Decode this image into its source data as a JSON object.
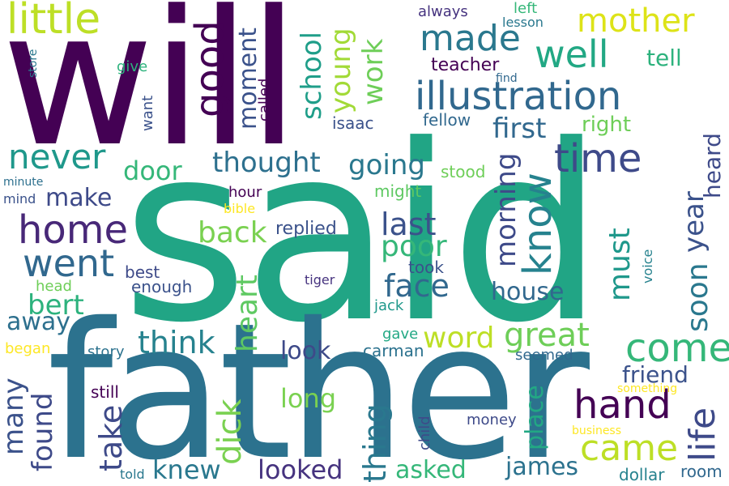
{
  "palette": {
    "purple": "#440154",
    "indigo": "#3b528b",
    "blue": "#31688e",
    "teal": "#21918c",
    "green": "#35b779",
    "lime": "#90d743",
    "yellow": "#fde725"
  },
  "words": [
    {
      "text": "will",
      "color": "#440154"
    },
    {
      "text": "said",
      "color": "#21a585"
    },
    {
      "text": "father",
      "color": "#2c728e"
    },
    {
      "text": "little",
      "color": "#bddf26"
    },
    {
      "text": "mother",
      "color": "#dde318"
    },
    {
      "text": "made",
      "color": "#2a788e"
    },
    {
      "text": "well",
      "color": "#22a884"
    },
    {
      "text": "illustration",
      "color": "#31688e"
    },
    {
      "text": "tell",
      "color": "#2db27d"
    },
    {
      "text": "good",
      "color": "#440154"
    },
    {
      "text": "moment",
      "color": "#3b528b"
    },
    {
      "text": "school",
      "color": "#1f9e89"
    },
    {
      "text": "young",
      "color": "#a2da37"
    },
    {
      "text": "work",
      "color": "#6ece58"
    },
    {
      "text": "never",
      "color": "#1f988b"
    },
    {
      "text": "time",
      "color": "#3e4a89"
    },
    {
      "text": "first",
      "color": "#31688e"
    },
    {
      "text": "right",
      "color": "#6ece58"
    },
    {
      "text": "thought",
      "color": "#2d708e"
    },
    {
      "text": "going",
      "color": "#2a788e"
    },
    {
      "text": "door",
      "color": "#35b779"
    },
    {
      "text": "know",
      "color": "#26828e"
    },
    {
      "text": "home",
      "color": "#482878"
    },
    {
      "text": "make",
      "color": "#3e4a89"
    },
    {
      "text": "went",
      "color": "#31688e"
    },
    {
      "text": "bert",
      "color": "#2db27d"
    },
    {
      "text": "back",
      "color": "#7ad151"
    },
    {
      "text": "last",
      "color": "#3b528b"
    },
    {
      "text": "poor",
      "color": "#35b779"
    },
    {
      "text": "face",
      "color": "#31688e"
    },
    {
      "text": "morning",
      "color": "#3e4a89"
    },
    {
      "text": "must",
      "color": "#1f988b"
    },
    {
      "text": "soon",
      "color": "#2a788e"
    },
    {
      "text": "year",
      "color": "#3b528b"
    },
    {
      "text": "heard",
      "color": "#3e4a89"
    },
    {
      "text": "heart",
      "color": "#5ec962"
    },
    {
      "text": "away",
      "color": "#2d708e"
    },
    {
      "text": "think",
      "color": "#26828e"
    },
    {
      "text": "word",
      "color": "#bddf26"
    },
    {
      "text": "great",
      "color": "#6ece58"
    },
    {
      "text": "come",
      "color": "#35b779"
    },
    {
      "text": "house",
      "color": "#31688e"
    },
    {
      "text": "hand",
      "color": "#440154"
    },
    {
      "text": "came",
      "color": "#bddf26"
    },
    {
      "text": "life",
      "color": "#3e4a89"
    },
    {
      "text": "friend",
      "color": "#3b528b"
    },
    {
      "text": "look",
      "color": "#3e4a89"
    },
    {
      "text": "long",
      "color": "#7ad151"
    },
    {
      "text": "thing",
      "color": "#2a788e"
    },
    {
      "text": "dick",
      "color": "#7ad151"
    },
    {
      "text": "take",
      "color": "#3e4a89"
    },
    {
      "text": "found",
      "color": "#3e4a89"
    },
    {
      "text": "many",
      "color": "#3b528b"
    },
    {
      "text": "knew",
      "color": "#2a788e"
    },
    {
      "text": "looked",
      "color": "#46337f"
    },
    {
      "text": "asked",
      "color": "#35b779"
    },
    {
      "text": "james",
      "color": "#2c728e"
    },
    {
      "text": "place",
      "color": "#22a884"
    },
    {
      "text": "room",
      "color": "#31688e"
    },
    {
      "text": "dollar",
      "color": "#26828e"
    },
    {
      "text": "something",
      "color": "#fde725"
    },
    {
      "text": "business",
      "color": "#fde725"
    },
    {
      "text": "money",
      "color": "#3e4a89"
    },
    {
      "text": "child",
      "color": "#3e4a89"
    },
    {
      "text": "seemed",
      "color": "#31688e"
    },
    {
      "text": "carman",
      "color": "#2c728e"
    },
    {
      "text": "gave",
      "color": "#22a884"
    },
    {
      "text": "jack",
      "color": "#1f988b"
    },
    {
      "text": "voice",
      "color": "#26828e"
    },
    {
      "text": "tiger",
      "color": "#46337f"
    },
    {
      "text": "took",
      "color": "#3b528b"
    },
    {
      "text": "replied",
      "color": "#3b528b"
    },
    {
      "text": "enough",
      "color": "#3b528b"
    },
    {
      "text": "best",
      "color": "#3e4a89"
    },
    {
      "text": "hour",
      "color": "#440154"
    },
    {
      "text": "bible",
      "color": "#fde725"
    },
    {
      "text": "might",
      "color": "#5ec962"
    },
    {
      "text": "stood",
      "color": "#6ece58"
    },
    {
      "text": "fellow",
      "color": "#31688e"
    },
    {
      "text": "isaac",
      "color": "#3b528b"
    },
    {
      "text": "find",
      "color": "#31688e"
    },
    {
      "text": "teacher",
      "color": "#440154"
    },
    {
      "text": "always",
      "color": "#46337f"
    },
    {
      "text": "left",
      "color": "#35b779"
    },
    {
      "text": "lesson",
      "color": "#2a788e"
    },
    {
      "text": "called",
      "color": "#440154"
    },
    {
      "text": "want",
      "color": "#3b528b"
    },
    {
      "text": "give",
      "color": "#2db27d"
    },
    {
      "text": "store",
      "color": "#2a788e"
    },
    {
      "text": "minute",
      "color": "#2d708e"
    },
    {
      "text": "mind",
      "color": "#3b528b"
    },
    {
      "text": "head",
      "color": "#6ece58"
    },
    {
      "text": "began",
      "color": "#fde725"
    },
    {
      "text": "story",
      "color": "#2c728e"
    },
    {
      "text": "still",
      "color": "#440154"
    },
    {
      "text": "told",
      "color": "#2a788e"
    }
  ]
}
